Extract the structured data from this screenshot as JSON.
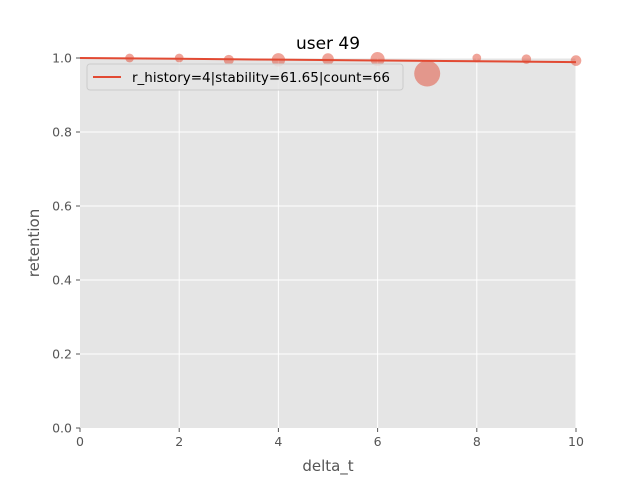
{
  "chart_data": {
    "type": "scatter",
    "title": "user 49",
    "xlabel": "delta_t",
    "ylabel": "retention",
    "xlim": [
      0,
      10
    ],
    "ylim": [
      0,
      1.0
    ],
    "x_ticks": [
      "0",
      "2",
      "4",
      "6",
      "8",
      "10"
    ],
    "y_ticks": [
      "0.0",
      "0.2",
      "0.4",
      "0.6",
      "0.8",
      "1.0"
    ],
    "grid": true,
    "legend_position": "top-left",
    "colors": {
      "accent": "#E24A33",
      "plot_bg": "#E5E5E5",
      "grid": "#FFFFFF"
    },
    "points": [
      {
        "x": 1,
        "y": 1.0,
        "weight": 3
      },
      {
        "x": 2,
        "y": 1.0,
        "weight": 3
      },
      {
        "x": 3,
        "y": 0.995,
        "weight": 5
      },
      {
        "x": 4,
        "y": 0.995,
        "weight": 12
      },
      {
        "x": 5,
        "y": 0.997,
        "weight": 8
      },
      {
        "x": 6,
        "y": 0.997,
        "weight": 14
      },
      {
        "x": 7,
        "y": 0.958,
        "weight": 66
      },
      {
        "x": 8,
        "y": 1.0,
        "weight": 3
      },
      {
        "x": 9,
        "y": 0.997,
        "weight": 4
      },
      {
        "x": 10,
        "y": 0.993,
        "weight": 6
      }
    ],
    "series": [
      {
        "name": "r_history=4|stability=61.65|count=66",
        "type": "line",
        "x": [
          0,
          2,
          4,
          6,
          8,
          10
        ],
        "y": [
          1.0,
          0.9978,
          0.9955,
          0.9933,
          0.9911,
          0.9889
        ]
      }
    ]
  }
}
